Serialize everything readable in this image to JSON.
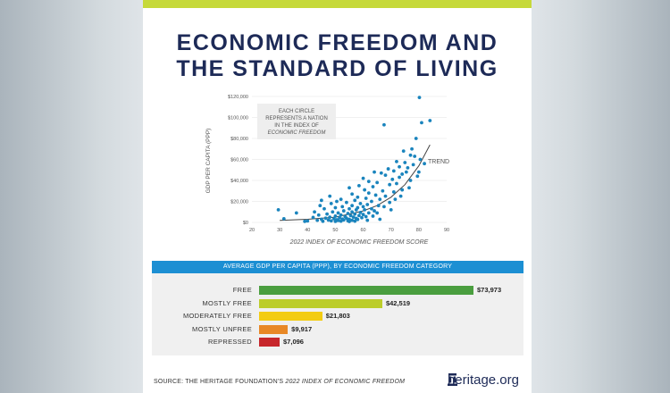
{
  "title": {
    "line1": "ECONOMIC FREEDOM AND",
    "line2": "THE STANDARD OF LIVING"
  },
  "annotation": {
    "line1": "EACH CIRCLE",
    "line2": "REPRESENTS A NATION",
    "line3": "IN THE INDEX OF",
    "line4": "ECONOMIC FREEDOM"
  },
  "colors": {
    "title": "#1d2a57",
    "top_bar": "#c6d93a",
    "dot": "#1a84bd",
    "band": "#1c8fd3"
  },
  "chart_data": [
    {
      "type": "scatter",
      "title": "",
      "xlabel": "2022 INDEX OF ECONOMIC FREEDOM SCORE",
      "ylabel": "GDP PER CAPITA (PPP)",
      "xlim": [
        20,
        90
      ],
      "ylim": [
        0,
        120000
      ],
      "x_ticks": [
        "20",
        "30",
        "40",
        "50",
        "60",
        "70",
        "80",
        "90"
      ],
      "y_ticks": [
        "$0",
        "$20,000",
        "$40,000",
        "$60,000",
        "$80,000",
        "$100,000",
        "$120,000"
      ],
      "trend_label": "TREND",
      "points": [
        [
          80.2,
          119000
        ],
        [
          84.0,
          97000
        ],
        [
          81.0,
          95000
        ],
        [
          67.5,
          93000
        ],
        [
          79.0,
          80000
        ],
        [
          77.5,
          70000
        ],
        [
          74.5,
          68000
        ],
        [
          77.0,
          64000
        ],
        [
          78.5,
          63000
        ],
        [
          80.5,
          60000
        ],
        [
          72.0,
          58000
        ],
        [
          75.0,
          57000
        ],
        [
          78.0,
          55000
        ],
        [
          73.0,
          53000
        ],
        [
          76.0,
          52000
        ],
        [
          69.0,
          51000
        ],
        [
          71.0,
          49000
        ],
        [
          64.0,
          48000
        ],
        [
          80.0,
          48000
        ],
        [
          66.5,
          47000
        ],
        [
          74.0,
          46000
        ],
        [
          68.0,
          45000
        ],
        [
          73.0,
          43000
        ],
        [
          60.0,
          42000
        ],
        [
          70.5,
          41000
        ],
        [
          77.0,
          40000
        ],
        [
          62.0,
          39000
        ],
        [
          65.0,
          38000
        ],
        [
          72.0,
          37000
        ],
        [
          69.5,
          36000
        ],
        [
          58.5,
          35000
        ],
        [
          63.5,
          34000
        ],
        [
          55.0,
          33000
        ],
        [
          60.5,
          31000
        ],
        [
          67.0,
          30000
        ],
        [
          71.0,
          29000
        ],
        [
          62.0,
          28000
        ],
        [
          56.0,
          27000
        ],
        [
          64.5,
          26000
        ],
        [
          68.0,
          25000
        ],
        [
          58.0,
          24000
        ],
        [
          61.0,
          23000
        ],
        [
          52.0,
          22000
        ],
        [
          66.0,
          22000
        ],
        [
          57.0,
          21000
        ],
        [
          63.0,
          20000
        ],
        [
          54.0,
          19000
        ],
        [
          69.5,
          19000
        ],
        [
          59.0,
          18000
        ],
        [
          48.5,
          18000
        ],
        [
          61.5,
          17000
        ],
        [
          56.0,
          16000
        ],
        [
          65.5,
          16000
        ],
        [
          52.5,
          15000
        ],
        [
          60.0,
          15000
        ],
        [
          58.0,
          14000
        ],
        [
          50.0,
          14000
        ],
        [
          63.0,
          13000
        ],
        [
          55.0,
          13000
        ],
        [
          46.0,
          13000
        ],
        [
          57.5,
          12000
        ],
        [
          60.5,
          12000
        ],
        [
          53.0,
          11000
        ],
        [
          64.0,
          11000
        ],
        [
          49.0,
          10000
        ],
        [
          56.0,
          10000
        ],
        [
          59.0,
          9500
        ],
        [
          51.0,
          9000
        ],
        [
          62.0,
          9000
        ],
        [
          54.5,
          8500
        ],
        [
          47.0,
          8000
        ],
        [
          57.0,
          8000
        ],
        [
          60.0,
          7500
        ],
        [
          52.0,
          7000
        ],
        [
          44.0,
          7000
        ],
        [
          55.5,
          6500
        ],
        [
          58.5,
          6500
        ],
        [
          50.0,
          6000
        ],
        [
          53.5,
          5500
        ],
        [
          61.0,
          5500
        ],
        [
          48.0,
          5000
        ],
        [
          56.5,
          5000
        ],
        [
          42.0,
          4800
        ],
        [
          51.5,
          4500
        ],
        [
          59.5,
          4500
        ],
        [
          54.0,
          4000
        ],
        [
          46.5,
          4000
        ],
        [
          57.5,
          3800
        ],
        [
          49.5,
          3500
        ],
        [
          52.5,
          3200
        ],
        [
          55.0,
          3000
        ],
        [
          45.0,
          3000
        ],
        [
          58.0,
          2800
        ],
        [
          50.5,
          2500
        ],
        [
          53.0,
          2300
        ],
        [
          47.5,
          2200
        ],
        [
          56.0,
          2000
        ],
        [
          43.5,
          2000
        ],
        [
          51.0,
          1800
        ],
        [
          54.5,
          1600
        ],
        [
          48.5,
          1500
        ],
        [
          40.0,
          1400
        ],
        [
          52.0,
          1200
        ],
        [
          57.0,
          1200
        ],
        [
          45.5,
          1100
        ],
        [
          50.0,
          1000
        ],
        [
          55.0,
          900
        ],
        [
          29.5,
          12000
        ],
        [
          31.5,
          3500
        ],
        [
          39.0,
          1000
        ],
        [
          36.0,
          9000
        ],
        [
          44.5,
          16000
        ],
        [
          42.5,
          10000
        ],
        [
          66.0,
          3000
        ],
        [
          63.5,
          6000
        ],
        [
          70.0,
          12000
        ],
        [
          73.5,
          25000
        ],
        [
          76.5,
          33000
        ],
        [
          79.5,
          44000
        ],
        [
          75.5,
          48000
        ],
        [
          82.0,
          56000
        ],
        [
          74.0,
          31000
        ],
        [
          71.5,
          22000
        ],
        [
          67.5,
          15000
        ],
        [
          65.0,
          9000
        ],
        [
          61.5,
          2000
        ],
        [
          48.0,
          25000
        ],
        [
          50.5,
          20000
        ],
        [
          45.0,
          21000
        ]
      ],
      "trend": [
        [
          30,
          2000
        ],
        [
          40,
          3000
        ],
        [
          50,
          5000
        ],
        [
          60,
          11000
        ],
        [
          65,
          16000
        ],
        [
          70,
          24000
        ],
        [
          75,
          36000
        ],
        [
          80,
          54000
        ],
        [
          84,
          74000
        ]
      ]
    },
    {
      "type": "bar",
      "title": "AVERAGE GDP PER CAPITA (PPP), BY ECONOMIC FREEDOM CATEGORY",
      "categories": [
        "FREE",
        "MOSTLY FREE",
        "MODERATELY FREE",
        "MOSTLY UNFREE",
        "REPRESSED"
      ],
      "values": [
        73973,
        42519,
        21803,
        9917,
        7096
      ],
      "value_labels": [
        "$73,973",
        "$42,519",
        "$21,803",
        "$9,917",
        "$7,096"
      ],
      "bar_colors": [
        "#4a9e3f",
        "#bccd2a",
        "#f3cc12",
        "#e88826",
        "#c7262b"
      ]
    }
  ],
  "footer": {
    "source_prefix": "SOURCE: THE HERITAGE FOUNDATION'S ",
    "source_italic": "2022 INDEX OF ECONOMIC FREEDOM",
    "brand": "heritage.org"
  }
}
